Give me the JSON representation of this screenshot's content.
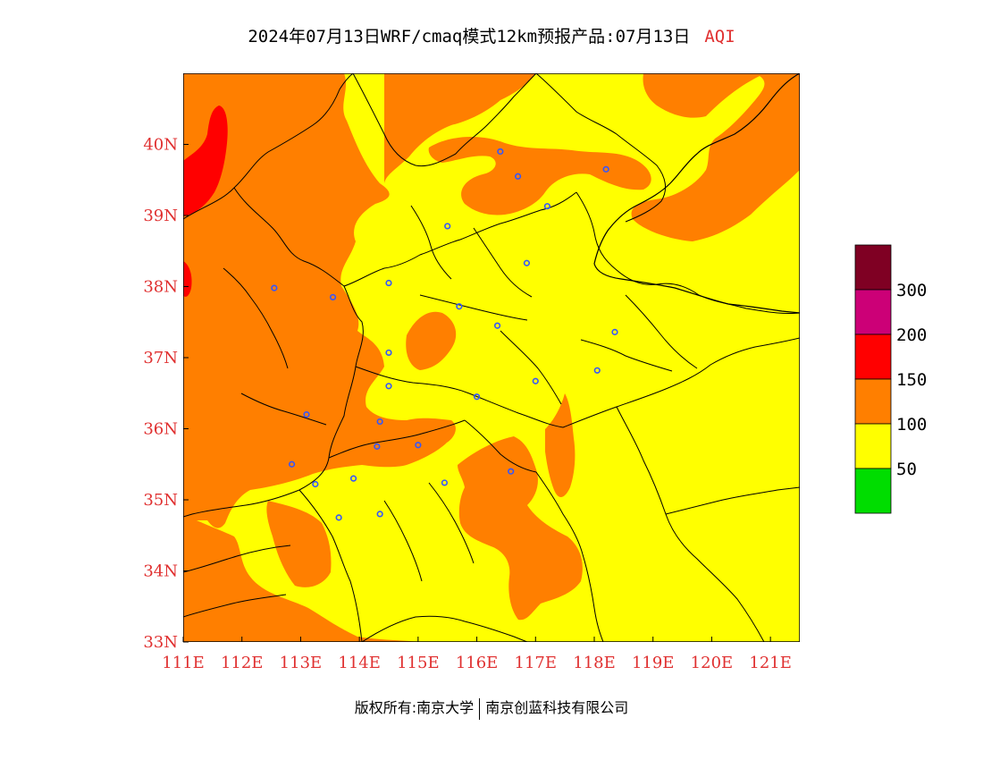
{
  "title": {
    "main": "2024年07月13日WRF/cmaq模式12km预报产品:07月13日",
    "variable": "AQI"
  },
  "map": {
    "lon_min": 111,
    "lon_max": 121.5,
    "lat_min": 33,
    "lat_max": 41,
    "lon_ticks": [
      "111E",
      "112E",
      "113E",
      "114E",
      "115E",
      "116E",
      "117E",
      "118E",
      "119E",
      "120E",
      "121E"
    ],
    "lat_ticks": [
      "33N",
      "34N",
      "35N",
      "36N",
      "37N",
      "38N",
      "39N",
      "40N"
    ],
    "background_level": "50-100",
    "colors": {
      "good": "#00dd00",
      "moderate": "#ffff00",
      "unhealthy_sensitive": "#ff7f00",
      "unhealthy": "#ff0000",
      "very_unhealthy": "#cc0077",
      "hazardous": "#7f0023",
      "boundary": "#000000",
      "station": "#3355ff",
      "axis_text": "#e03030"
    },
    "stations": [
      {
        "lon": 116.4,
        "lat": 39.9
      },
      {
        "lon": 116.7,
        "lat": 39.55
      },
      {
        "lon": 117.2,
        "lat": 39.13
      },
      {
        "lon": 118.2,
        "lat": 39.65
      },
      {
        "lon": 115.5,
        "lat": 38.85
      },
      {
        "lon": 116.85,
        "lat": 38.33
      },
      {
        "lon": 114.5,
        "lat": 38.05
      },
      {
        "lon": 112.55,
        "lat": 37.98
      },
      {
        "lon": 113.55,
        "lat": 37.85
      },
      {
        "lon": 115.7,
        "lat": 37.72
      },
      {
        "lon": 116.35,
        "lat": 37.45
      },
      {
        "lon": 114.5,
        "lat": 37.07
      },
      {
        "lon": 114.5,
        "lat": 36.6
      },
      {
        "lon": 116.0,
        "lat": 36.45
      },
      {
        "lon": 117.0,
        "lat": 36.67
      },
      {
        "lon": 118.05,
        "lat": 36.82
      },
      {
        "lon": 118.35,
        "lat": 37.36
      },
      {
        "lon": 113.1,
        "lat": 36.2
      },
      {
        "lon": 114.35,
        "lat": 36.1
      },
      {
        "lon": 114.3,
        "lat": 35.75
      },
      {
        "lon": 115.0,
        "lat": 35.77
      },
      {
        "lon": 112.85,
        "lat": 35.5
      },
      {
        "lon": 113.25,
        "lat": 35.22
      },
      {
        "lon": 113.9,
        "lat": 35.3
      },
      {
        "lon": 115.45,
        "lat": 35.24
      },
      {
        "lon": 116.58,
        "lat": 35.4
      },
      {
        "lon": 114.35,
        "lat": 34.8
      },
      {
        "lon": 113.65,
        "lat": 34.75
      }
    ]
  },
  "colorbar": {
    "labels": [
      "50",
      "100",
      "150",
      "200",
      "300"
    ],
    "colors": [
      "#00dd00",
      "#ffff00",
      "#ff7f00",
      "#ff0000",
      "#cc0077",
      "#7f0023"
    ]
  },
  "copyright": {
    "left": "版权所有:南京大学",
    "right": "南京创蓝科技有限公司"
  }
}
